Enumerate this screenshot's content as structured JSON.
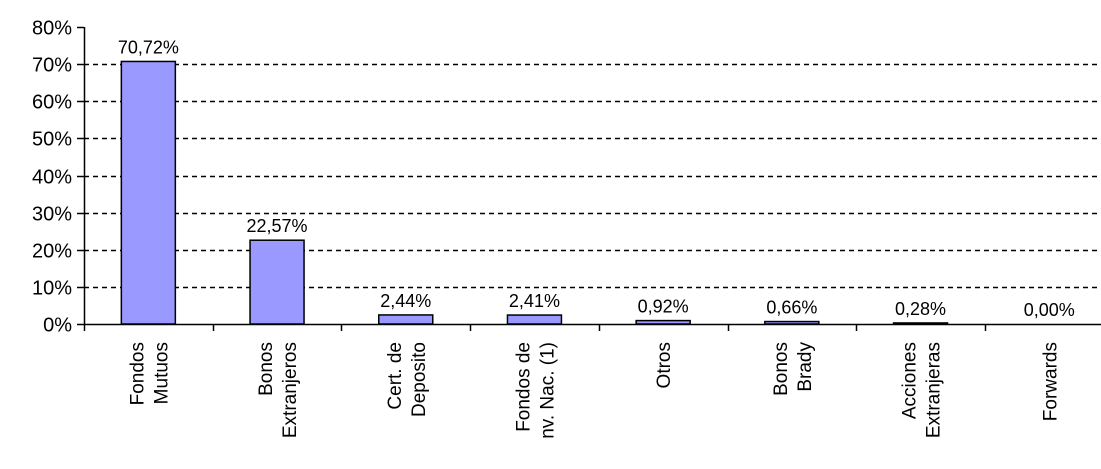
{
  "chart_data": {
    "type": "bar",
    "title": "",
    "xlabel": "",
    "ylabel": "",
    "ylim": [
      0,
      80
    ],
    "yticks": [
      0,
      10,
      20,
      30,
      40,
      50,
      60,
      70,
      80
    ],
    "ytick_suffix": "%",
    "grid": "dashed-horizontal",
    "legend": "none",
    "categories": [
      [
        "Fondos",
        "Mutuos"
      ],
      [
        "Bonos",
        "Extranjeros"
      ],
      [
        "Cert. de",
        "Deposito"
      ],
      [
        "Fondos de",
        "nv. Nac. (1)"
      ],
      [
        "Otros"
      ],
      [
        "Bonos",
        "Brady"
      ],
      [
        "Acciones",
        "Extranjeras"
      ],
      [
        "Forwards"
      ]
    ],
    "values": [
      70.72,
      22.57,
      2.44,
      2.41,
      0.92,
      0.66,
      0.28,
      0.0
    ],
    "data_labels": [
      "70,72%",
      "22,57%",
      "2,44%",
      "2,41%",
      "0,92%",
      "0,66%",
      "0,28%",
      "0,00%"
    ],
    "bar_color": "#9999ff",
    "bar_stroke": "#000000",
    "grid_color": "#000000"
  }
}
